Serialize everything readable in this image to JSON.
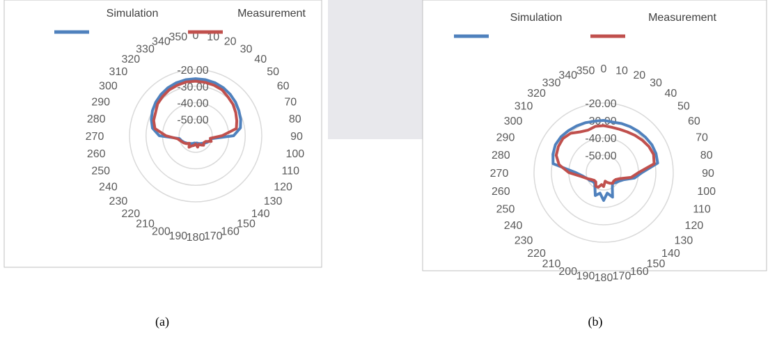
{
  "captions": [
    "(a)",
    "(b)"
  ],
  "colors": {
    "simulation": "#4f81bd",
    "measurement": "#c0504d",
    "grid": "#d9d9d9",
    "frame": "#bfbfbf",
    "text": "#595959"
  },
  "chart_data": [
    {
      "type": "line",
      "subtype": "polar-radar",
      "caption": "(a)",
      "categories": [
        "0",
        "10",
        "20",
        "30",
        "40",
        "50",
        "60",
        "70",
        "80",
        "90",
        "100",
        "110",
        "120",
        "130",
        "140",
        "150",
        "160",
        "170",
        "180",
        "190",
        "200",
        "210",
        "220",
        "230",
        "240",
        "250",
        "260",
        "270",
        "280",
        "290",
        "300",
        "310",
        "320",
        "330",
        "340",
        "350"
      ],
      "radial_labels": [
        "-20.00",
        "-30.00",
        "-40.00",
        "-50.00"
      ],
      "rlim": [
        -60,
        -20
      ],
      "legend_position": "top",
      "grid": true,
      "series": [
        {
          "name": "Simulation",
          "values": [
            -25.5,
            -25.6,
            -25.9,
            -26.5,
            -27.4,
            -28.5,
            -29.8,
            -31.0,
            -32.5,
            -37.0,
            -50.0,
            -51.0,
            -52.0,
            -53.0,
            -54.0,
            -54.5,
            -55.0,
            -55.5,
            -55.5,
            -55.5,
            -55.0,
            -54.5,
            -54.0,
            -53.0,
            -52.0,
            -51.0,
            -50.0,
            -38.0,
            -33.5,
            -31.5,
            -29.8,
            -28.5,
            -27.4,
            -26.5,
            -25.9,
            -25.6
          ]
        },
        {
          "name": "Measurement",
          "values": [
            -27.0,
            -27.2,
            -27.5,
            -28.0,
            -29.5,
            -30.5,
            -32.0,
            -33.5,
            -35.0,
            -44.0,
            -51.0,
            -50.0,
            -53.0,
            -53.5,
            -52.5,
            -53.5,
            -54.5,
            -53.0,
            -55.0,
            -54.0,
            -53.5,
            -52.0,
            -54.0,
            -52.5,
            -51.5,
            -50.5,
            -49.0,
            -42.0,
            -35.0,
            -33.0,
            -32.0,
            -30.0,
            -29.0,
            -28.0,
            -27.5,
            -27.0
          ]
        }
      ]
    },
    {
      "type": "line",
      "subtype": "polar-radar",
      "caption": "(b)",
      "categories": [
        "0",
        "10",
        "20",
        "30",
        "40",
        "50",
        "60",
        "70",
        "80",
        "90",
        "100",
        "110",
        "120",
        "130",
        "140",
        "150",
        "160",
        "170",
        "180",
        "190",
        "200",
        "210",
        "220",
        "230",
        "240",
        "250",
        "260",
        "270",
        "280",
        "290",
        "300",
        "310",
        "320",
        "330",
        "340",
        "350"
      ],
      "radial_labels": [
        "-20.00",
        "-30.00",
        "-40.00",
        "-50.00"
      ],
      "rlim": [
        -60,
        -20
      ],
      "legend_position": "top",
      "grid": true,
      "series": [
        {
          "name": "Simulation",
          "values": [
            -30.0,
            -30.5,
            -30.0,
            -29.5,
            -29.0,
            -28.5,
            -28.0,
            -28.0,
            -28.5,
            -38.0,
            -42.0,
            -48.0,
            -50.0,
            -51.0,
            -52.0,
            -50.0,
            -45.0,
            -48.0,
            -44.0,
            -48.0,
            -46.0,
            -50.0,
            -52.0,
            -52.0,
            -51.0,
            -50.0,
            -48.0,
            -44.0,
            -30.5,
            -29.0,
            -28.0,
            -28.0,
            -28.5,
            -29.0,
            -29.5,
            -30.0
          ]
        },
        {
          "name": "Measurement",
          "values": [
            -33.0,
            -33.5,
            -33.5,
            -33.0,
            -32.0,
            -31.0,
            -30.0,
            -29.5,
            -30.5,
            -40.0,
            -44.0,
            -50.0,
            -52.0,
            -52.5,
            -52.0,
            -53.0,
            -54.0,
            -55.0,
            -52.0,
            -53.0,
            -51.0,
            -51.0,
            -53.0,
            -53.0,
            -52.0,
            -50.0,
            -47.0,
            -40.0,
            -34.0,
            -31.0,
            -30.0,
            -29.5,
            -30.5,
            -33.0,
            -34.0,
            -33.0
          ]
        }
      ]
    }
  ]
}
